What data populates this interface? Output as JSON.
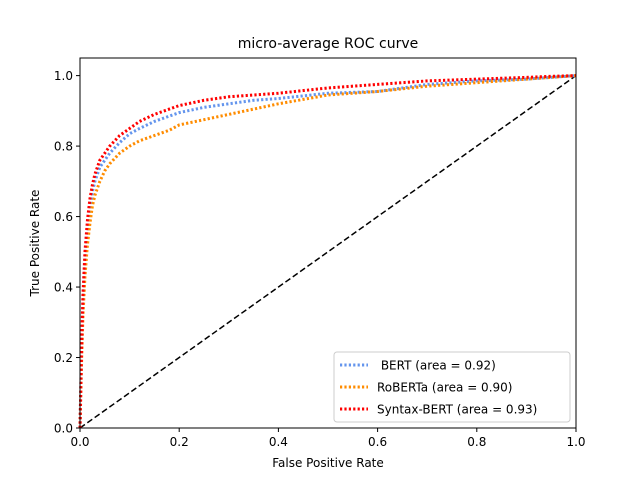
{
  "chart_data": {
    "type": "line",
    "title": "micro-average ROC curve",
    "xlabel": "False Positive Rate",
    "ylabel": "True Positive Rate",
    "xlim": [
      0.0,
      1.0
    ],
    "ylim": [
      0.0,
      1.05
    ],
    "xticks": [
      "0.0",
      "0.2",
      "0.4",
      "0.6",
      "0.8",
      "1.0"
    ],
    "yticks": [
      "0.0",
      "0.2",
      "0.4",
      "0.6",
      "0.8",
      "1.0"
    ],
    "grid": false,
    "legend_position": "lower-right",
    "series": [
      {
        "name": " BERT (area = 0.92)",
        "color": "#6495ED",
        "style": "dotted",
        "x": [
          0,
          0.003,
          0.006,
          0.01,
          0.015,
          0.02,
          0.025,
          0.03,
          0.04,
          0.05,
          0.06,
          0.08,
          0.1,
          0.12,
          0.15,
          0.18,
          0.2,
          0.25,
          0.3,
          0.35,
          0.4,
          0.5,
          0.6,
          0.7,
          0.8,
          0.9,
          0.95,
          1.0
        ],
        "y": [
          0,
          0.2,
          0.35,
          0.47,
          0.56,
          0.62,
          0.67,
          0.7,
          0.74,
          0.76,
          0.78,
          0.81,
          0.835,
          0.85,
          0.87,
          0.885,
          0.895,
          0.91,
          0.92,
          0.93,
          0.935,
          0.95,
          0.955,
          0.975,
          0.985,
          0.99,
          0.995,
          1.0
        ]
      },
      {
        "name": "RoBERTa (area = 0.90)",
        "color": "#FF8C00",
        "style": "dotted",
        "x": [
          0,
          0.003,
          0.006,
          0.01,
          0.015,
          0.02,
          0.025,
          0.03,
          0.04,
          0.05,
          0.06,
          0.08,
          0.1,
          0.12,
          0.15,
          0.18,
          0.2,
          0.25,
          0.3,
          0.35,
          0.4,
          0.5,
          0.6,
          0.7,
          0.8,
          0.9,
          0.95,
          1.0
        ],
        "y": [
          0,
          0.18,
          0.32,
          0.43,
          0.52,
          0.58,
          0.63,
          0.66,
          0.7,
          0.73,
          0.75,
          0.78,
          0.8,
          0.815,
          0.83,
          0.845,
          0.86,
          0.875,
          0.89,
          0.905,
          0.92,
          0.945,
          0.955,
          0.97,
          0.98,
          0.99,
          0.995,
          1.0
        ]
      },
      {
        "name": "Syntax-BERT (area = 0.93)",
        "color": "#FF0000",
        "style": "dotted",
        "x": [
          0,
          0.003,
          0.006,
          0.01,
          0.015,
          0.02,
          0.025,
          0.03,
          0.04,
          0.05,
          0.06,
          0.08,
          0.1,
          0.12,
          0.15,
          0.18,
          0.2,
          0.25,
          0.3,
          0.35,
          0.4,
          0.5,
          0.6,
          0.7,
          0.8,
          0.9,
          0.95,
          1.0
        ],
        "y": [
          0,
          0.22,
          0.38,
          0.5,
          0.59,
          0.65,
          0.69,
          0.72,
          0.76,
          0.78,
          0.8,
          0.83,
          0.85,
          0.87,
          0.89,
          0.905,
          0.915,
          0.93,
          0.94,
          0.945,
          0.95,
          0.965,
          0.975,
          0.985,
          0.99,
          0.995,
          0.998,
          1.0
        ]
      },
      {
        "name": "",
        "color": "#000000",
        "style": "dashed",
        "x": [
          0,
          1.0
        ],
        "y": [
          0,
          1.0
        ]
      }
    ]
  }
}
